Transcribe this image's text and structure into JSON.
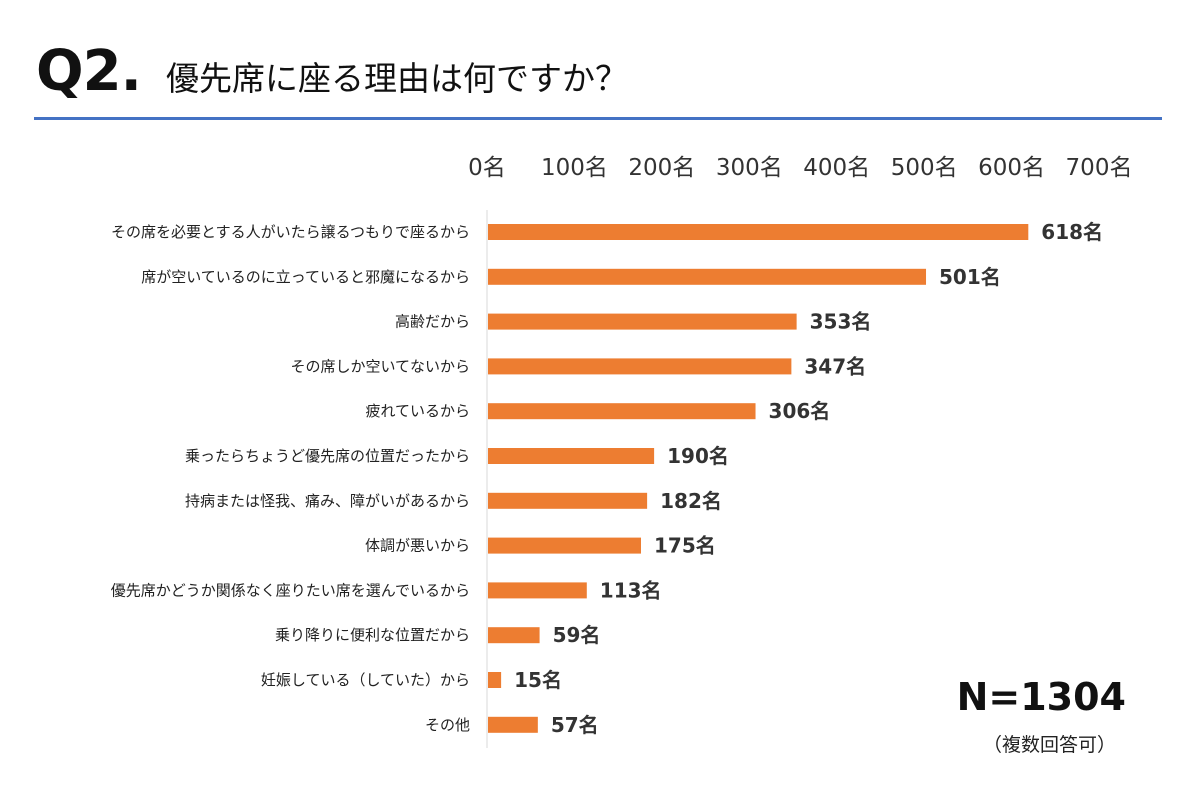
{
  "header": {
    "q_label": "Q2.",
    "question": "優先席に座る理由は何ですか？"
  },
  "footer": {
    "n_total": "N=1304",
    "n_note": "（複数回答可）"
  },
  "chart_data": {
    "type": "bar",
    "orientation": "horizontal",
    "title": "優先席に座る理由は何ですか？",
    "xlabel": "",
    "ylabel": "",
    "xlim": [
      0,
      700
    ],
    "x_ticks": [
      0,
      100,
      200,
      300,
      400,
      500,
      600,
      700
    ],
    "x_tick_labels": [
      "0名",
      "100名",
      "200名",
      "300名",
      "400名",
      "500名",
      "600名",
      "700名"
    ],
    "axis_position": "top",
    "grid": false,
    "bar_color": "#ed7d31",
    "categories": [
      "その席を必要とする人がいたら譲るつもりで座るから",
      "席が空いているのに立っていると邪魔になるから",
      "高齢だから",
      "その席しか空いてないから",
      "疲れているから",
      "乗ったらちょうど優先席の位置だったから",
      "持病または怪我、痛み、障がいがあるから",
      "体調が悪いから",
      "優先席かどうか関係なく座りたい席を選んでいるから",
      "乗り降りに便利な位置だから",
      "妊娠している（していた）から",
      "その他"
    ],
    "values": [
      618,
      501,
      353,
      347,
      306,
      190,
      182,
      175,
      113,
      59,
      15,
      57
    ],
    "value_labels": [
      "618名",
      "501名",
      "353名",
      "347名",
      "306名",
      "190名",
      "182名",
      "175名",
      "113名",
      "59名",
      "15名",
      "57名"
    ]
  }
}
